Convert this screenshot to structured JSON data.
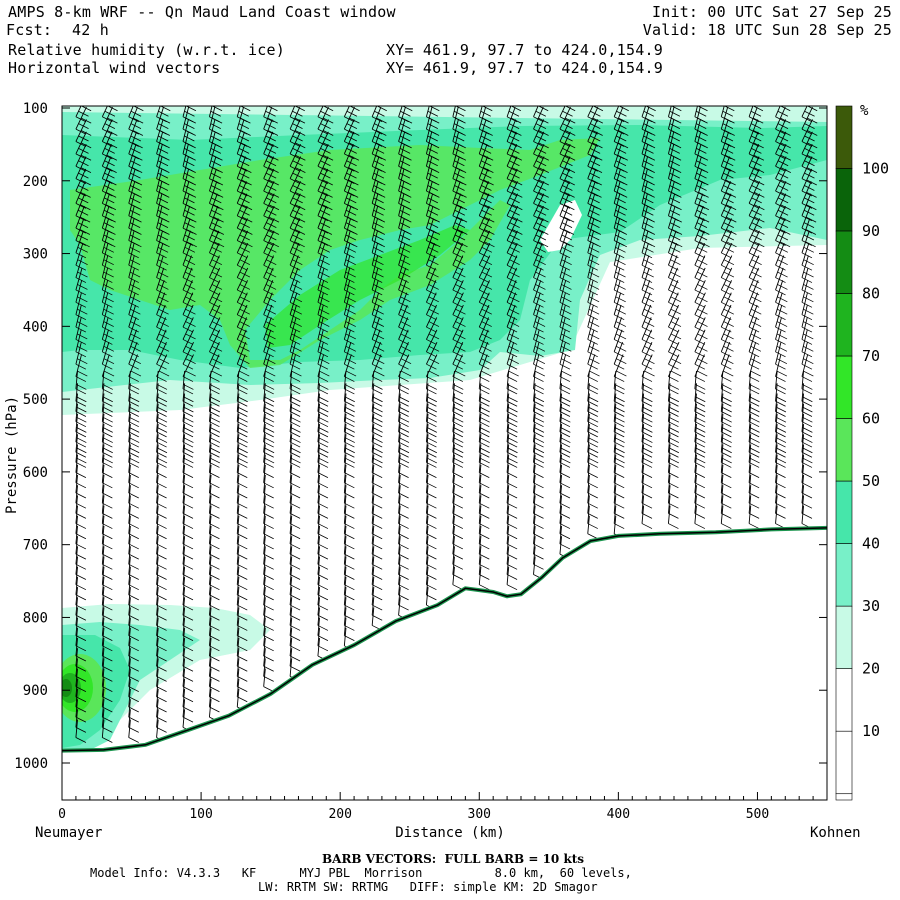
{
  "header": {
    "title": "AMPS 8-km WRF -- Qn Maud Land Coast window",
    "fcst_label": "Fcst:",
    "fcst_value": "42 h",
    "init": "Init: 00 UTC Sat 27 Sep 25",
    "valid": "Valid: 18 UTC Sun 28 Sep 25",
    "field1": "Relative humidity (w.r.t. ice)",
    "field2": "Horizontal wind vectors",
    "xy1": "XY= 461.9, 97.7 to 424.0,154.9",
    "xy2": "XY= 461.9, 97.7 to 424.0,154.9"
  },
  "footer": {
    "barb_note": "BARB VECTORS:  FULL BARB = 10 kts",
    "model_info": "Model Info: V4.3.3   KF      MYJ PBL  Morrison          8.0 km,  60 levels,",
    "physics": "LW: RRTM SW: RRTMG   DIFF: simple KM: 2D Smagor"
  },
  "colors": {
    "rh_bands": [
      "#ffffff",
      "#ffffff",
      "#ffffff",
      "#c8fae6",
      "#78f0c8",
      "#46e6aa",
      "#5ae65a",
      "#32e628",
      "#1fb41f",
      "#148c14",
      "#0a640a",
      "#3c5a0a"
    ],
    "terrain_line": "#000000",
    "terrain_edge": "#1e9650"
  },
  "chart_data": {
    "type": "heatmap",
    "title": "Relative humidity (w.r.t. ice) and horizontal wind vectors",
    "xlabel": "Distance (km)",
    "ylabel": "Pressure (hPa)",
    "xlim": [
      0,
      550
    ],
    "ylim": [
      1050,
      100
    ],
    "x_ticks": [
      0,
      100,
      200,
      300,
      400,
      500
    ],
    "y_ticks": [
      100,
      200,
      300,
      400,
      500,
      600,
      700,
      800,
      900,
      1000
    ],
    "left_endpoint": "Neumayer",
    "right_endpoint": "Kohnen",
    "colorbar": {
      "unit": "%",
      "levels": [
        10,
        20,
        30,
        40,
        50,
        60,
        70,
        80,
        90,
        100
      ]
    },
    "terrain_surface_hpa": {
      "distance_km": [
        0,
        30,
        60,
        90,
        120,
        150,
        180,
        210,
        240,
        270,
        290,
        310,
        320,
        330,
        345,
        360,
        380,
        400,
        430,
        470,
        510,
        550
      ],
      "pressure": [
        983,
        982,
        975,
        955,
        935,
        905,
        865,
        838,
        805,
        783,
        760,
        765,
        771,
        768,
        745,
        718,
        695,
        688,
        685,
        683,
        679,
        677
      ]
    },
    "wind_columns_km": [
      10,
      29,
      48,
      68,
      87,
      106,
      126,
      145,
      164,
      184,
      203,
      223,
      242,
      262,
      281,
      300,
      320,
      339,
      358,
      378,
      397,
      417,
      436,
      455,
      474,
      494,
      513,
      532
    ],
    "barb_scale": "FULL BARB = 10 kts"
  }
}
